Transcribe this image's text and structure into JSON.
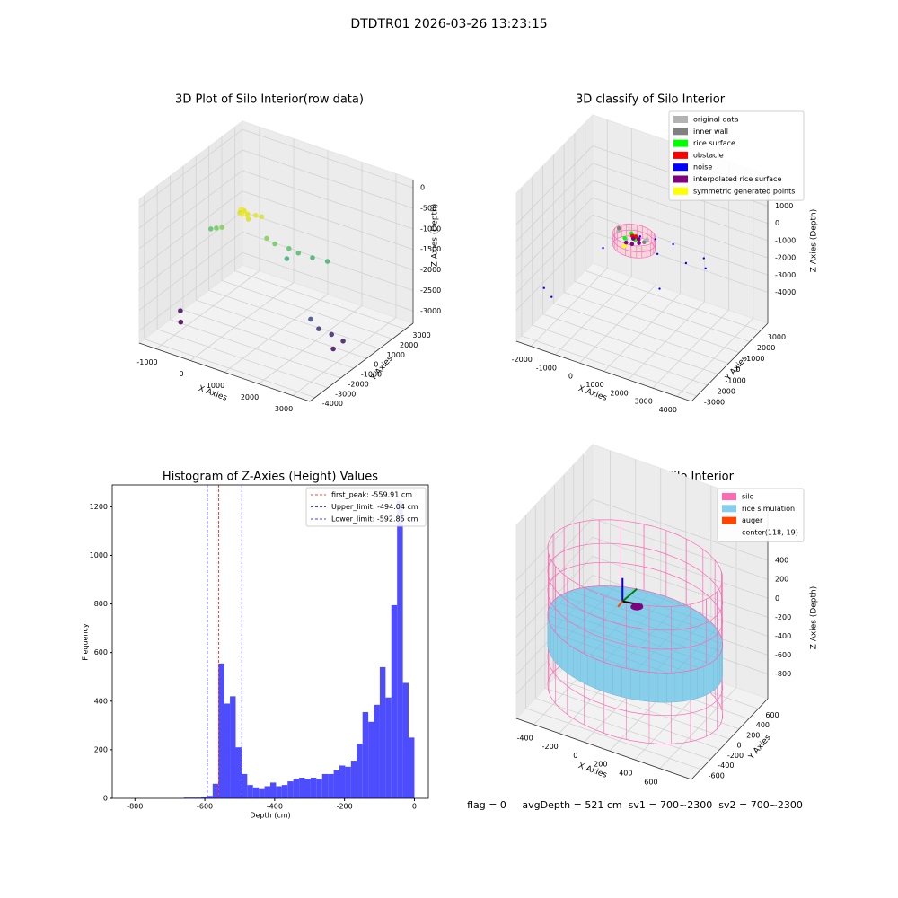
{
  "suptitle": "DTDTR01 2026-03-26 13:23:15",
  "status": "flag = 0     avgDepth = 521 cm  sv1 = 700~2300  sv2 = 700~2300",
  "chart_data": [
    {
      "type": "scatter3d",
      "title": "3D Plot of Silo Interior(row data)",
      "xlabel": "X Axies",
      "ylabel": "Y Axies",
      "zlabel": "Z Axies (Depth)",
      "xlim": [
        -1500,
        3500
      ],
      "ylim": [
        -4400,
        3600
      ],
      "zlim": [
        -3300,
        200
      ],
      "xticks": [
        -1000,
        0,
        1000,
        2000,
        3000
      ],
      "yticks": [
        -4000,
        -3000,
        -2000,
        -1000,
        0,
        1000,
        2000,
        3000
      ],
      "zticks": [
        0,
        -500,
        -1000,
        -1500,
        -2000,
        -2500,
        -3000
      ],
      "colormap": "viridis",
      "points": {
        "x": [
          0,
          100,
          200,
          300,
          400,
          -100,
          500,
          150,
          50,
          250,
          -600,
          -400,
          -800,
          800,
          1000,
          1300,
          1500,
          1800,
          2200,
          1200,
          2200,
          2400,
          2700,
          3000,
          2900,
          -1200,
          -1000
        ],
        "y": [
          -500,
          -600,
          -500,
          -700,
          -400,
          -300,
          -200,
          -800,
          -350,
          -650,
          -800,
          -900,
          -700,
          -600,
          -500,
          -200,
          0,
          300,
          400,
          -100,
          -900,
          -800,
          -600,
          -500,
          -1000,
          -2000,
          -2500
        ],
        "z": [
          -550,
          -500,
          -600,
          -650,
          -600,
          -700,
          -650,
          -550,
          -600,
          -580,
          -1100,
          -1000,
          -1200,
          -1000,
          -1100,
          -1200,
          -1300,
          -1400,
          -1400,
          -1500,
          -2500,
          -2700,
          -2800,
          -2900,
          -3000,
          -3000,
          -3100
        ]
      }
    },
    {
      "type": "scatter3d",
      "title": "3D classify of Silo Interior",
      "xlabel": "X Axies",
      "ylabel": "Y Axies",
      "zlabel": "Z Axies (Depth)",
      "xlim": [
        -2600,
        4600
      ],
      "ylim": [
        -3500,
        3700
      ],
      "zlim": [
        -5800,
        2800
      ],
      "xticks": [
        -2000,
        -1000,
        0,
        1000,
        2000,
        3000,
        4000
      ],
      "yticks": [
        -3000,
        -2000,
        -1000,
        0,
        1000,
        2000,
        3000
      ],
      "zticks": [
        1000,
        0,
        -1000,
        -2000,
        -3000,
        -4000
      ],
      "legend": "upper right",
      "series": [
        {
          "name": "original data",
          "color": "#b3b3b3",
          "x": [
            300,
            900,
            -200
          ],
          "y": [
            200,
            800,
            600
          ],
          "z": [
            -800,
            -900,
            -850
          ]
        },
        {
          "name": "inner wall",
          "color": "#808080",
          "x": [
            1000,
            -300
          ],
          "y": [
            300,
            900
          ],
          "z": [
            -700,
            -900
          ]
        },
        {
          "name": "rice surface",
          "color": "#00ff00",
          "x": [
            200,
            400,
            600,
            300,
            500
          ],
          "y": [
            300,
            600,
            400,
            700,
            500
          ],
          "z": [
            -850,
            -800,
            -820,
            -780,
            -860
          ]
        },
        {
          "name": "obstacle",
          "color": "#ff0000",
          "x": [
            450,
            550
          ],
          "y": [
            450,
            550
          ],
          "z": [
            -700,
            -750
          ]
        },
        {
          "name": "noise",
          "color": "#0000ff",
          "x": [
            700,
            1200,
            1800,
            2500,
            3000,
            -1900,
            -1500,
            2200,
            1500,
            -300,
            2800
          ],
          "y": [
            600,
            900,
            1200,
            800,
            1500,
            -2500,
            -2700,
            -1000,
            400,
            -600,
            1800
          ],
          "z": [
            -700,
            -800,
            -1000,
            -1500,
            -2000,
            -3000,
            -3200,
            -2000,
            -1200,
            -1100,
            -1700
          ]
        },
        {
          "name": "interpolated rice surface",
          "color": "#800080",
          "x": [
            300,
            500,
            700,
            600,
            400
          ],
          "y": [
            200,
            300,
            500,
            700,
            650
          ],
          "z": [
            -1000,
            -1050,
            -1020,
            -980,
            -1000
          ]
        },
        {
          "name": "symmetric generated points",
          "color": "#ffff00",
          "x": [
            400
          ],
          "y": [
            -200
          ],
          "z": [
            -900
          ]
        }
      ]
    },
    {
      "type": "histogram",
      "title": "Histogram of Z-Axies (Height) Values",
      "xlabel": "Depth (cm)",
      "ylabel": "Frequency",
      "color": "#4d4dff",
      "bins": [
        -660,
        -643.5,
        -627,
        -610.5,
        -594,
        -577.5,
        -561,
        -544.5,
        -528,
        -511.5,
        -495,
        -478.5,
        -462,
        -445.5,
        -429,
        -412.5,
        -396,
        -379.5,
        -363,
        -346.5,
        -330,
        -313.5,
        -297,
        -280.5,
        -264,
        -247.5,
        -231,
        -214.5,
        -198,
        -181.5,
        -165,
        -148.5,
        -132,
        -115.5,
        -99,
        -82.5,
        -66,
        -49.5,
        -33,
        -16.5,
        0
      ],
      "values": [
        3,
        3,
        3,
        5,
        10,
        60,
        555,
        390,
        420,
        210,
        100,
        55,
        45,
        38,
        50,
        65,
        50,
        55,
        70,
        80,
        85,
        80,
        85,
        80,
        100,
        100,
        115,
        135,
        130,
        155,
        225,
        355,
        315,
        385,
        540,
        415,
        795,
        1225,
        475,
        250
      ],
      "xlim": [
        -865,
        40
      ],
      "ylim": [
        0,
        1290
      ],
      "xticks": [
        -800,
        -600,
        -400,
        -200,
        0
      ],
      "yticks": [
        0,
        200,
        400,
        600,
        800,
        1000,
        1200
      ],
      "legend": "upper right",
      "lines": [
        {
          "name": "first_peak: -559.91 cm",
          "value": -559.91,
          "color": "#ff0000"
        },
        {
          "name": "Upper_limit: -494.04 cm",
          "value": -494.04,
          "color": "#0000ff"
        },
        {
          "name": "Lower_limit: -592.85 cm",
          "value": -592.85,
          "color": "#0000ff"
        }
      ]
    },
    {
      "type": "surface3d",
      "title": "3D simulation of Silo Interior",
      "xlabel": "X Axies",
      "ylabel": "Y Axies",
      "zlabel": "Z Axies (Depth)",
      "xlim": [
        -540,
        850
      ],
      "ylim": [
        -800,
        800
      ],
      "zlim": [
        -1060,
        980
      ],
      "xticks": [
        -400,
        -200,
        0,
        200,
        400,
        600
      ],
      "yticks": [
        -600,
        -400,
        -200,
        0,
        200,
        400,
        600
      ],
      "zticks": [
        400,
        200,
        0,
        -200,
        -400,
        -600,
        -800
      ],
      "legend": "upper right",
      "series": [
        {
          "name": "silo",
          "color": "#ff69b4"
        },
        {
          "name": "rice simulation",
          "color": "#87ceeb"
        },
        {
          "name": "auger",
          "color": "#ff4500"
        },
        {
          "name": "center(118,-19)"
        }
      ]
    }
  ]
}
